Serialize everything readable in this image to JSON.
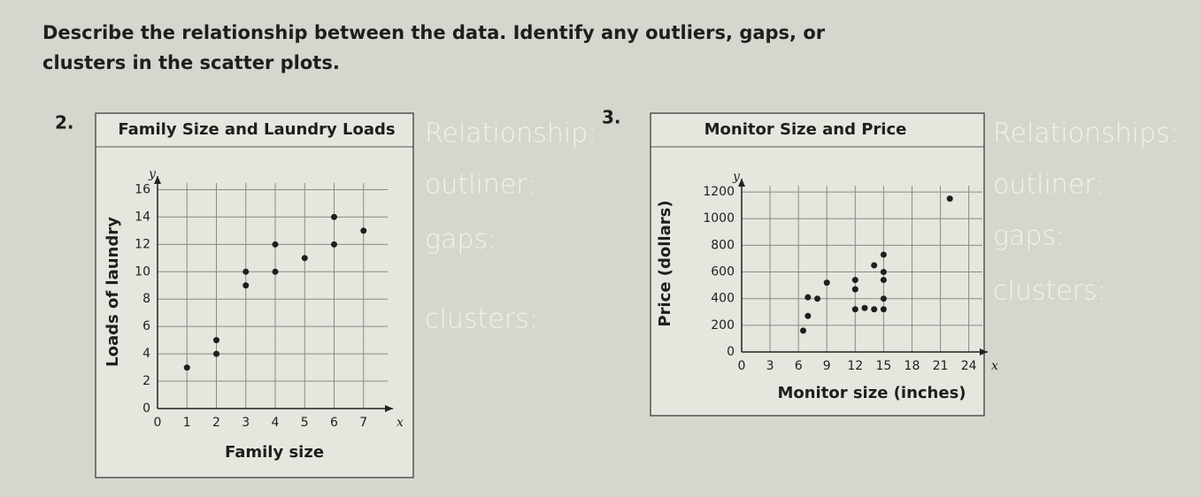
{
  "instructions": "Describe the relationship between the data. Identify any outliers, gaps, or clusters in the scatter plots.",
  "problems": [
    {
      "number": "2.",
      "notes": [
        "Relationship:",
        "outliner:",
        "gaps:",
        "clusters:"
      ]
    },
    {
      "number": "3.",
      "notes": [
        "Relationships:",
        "outliner:",
        "gaps:",
        "clusters:"
      ]
    }
  ],
  "chart_data": [
    {
      "type": "scatter",
      "title": "Family Size and Laundry Loads",
      "x_label": "Family size",
      "y_label": "Loads of laundry",
      "x_symbol": "x",
      "y_symbol": "y",
      "color": "#1e1e1e",
      "x": [
        1,
        2,
        2,
        3,
        3,
        4,
        4,
        5,
        6,
        6,
        7
      ],
      "y": [
        3,
        4,
        5,
        9,
        10,
        10,
        12,
        11,
        12,
        14,
        13
      ],
      "xlim": [
        0,
        8
      ],
      "ylim": [
        0,
        17
      ],
      "xticks": [
        0,
        1,
        2,
        3,
        4,
        5,
        6,
        7
      ],
      "yticks": [
        0,
        2,
        4,
        6,
        8,
        10,
        12,
        14,
        16
      ],
      "grid": true
    },
    {
      "type": "scatter",
      "title": "Monitor Size and Price",
      "x_label": "Monitor size (inches)",
      "y_label": "Price (dollars)",
      "x_symbol": "x",
      "y_symbol": "y",
      "color": "#1e1e1e",
      "x": [
        22,
        6.5,
        7,
        7,
        8,
        9,
        12,
        12,
        12,
        13,
        14,
        14,
        15,
        15,
        15,
        15,
        15
      ],
      "y": [
        1150,
        160,
        270,
        410,
        400,
        520,
        540,
        470,
        320,
        330,
        320,
        650,
        600,
        540,
        730,
        400,
        320
      ],
      "xlim": [
        0,
        26
      ],
      "ylim": [
        0,
        1300
      ],
      "xticks": [
        0,
        3,
        6,
        9,
        12,
        15,
        18,
        21,
        24
      ],
      "yticks": [
        0,
        200,
        400,
        600,
        800,
        1000,
        1200
      ],
      "grid": true
    }
  ]
}
